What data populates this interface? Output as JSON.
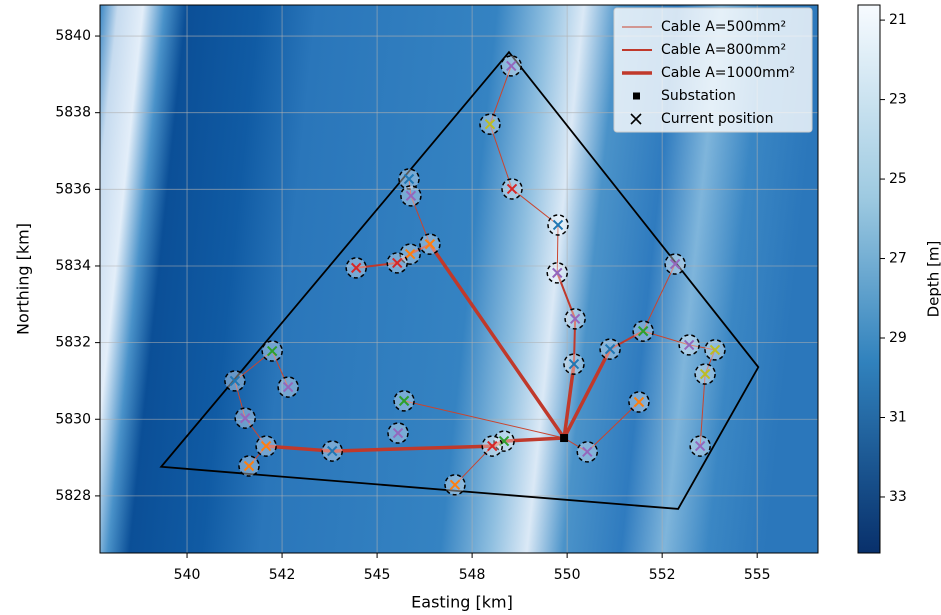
{
  "chart_data": {
    "type": "scatter",
    "xlabel": "Easting [km]",
    "ylabel": "Northing [km]",
    "xlim": [
      537.71,
      556.6
    ],
    "ylim": [
      5826.51,
      5840.81
    ],
    "xticks": [
      540,
      {
        "value": 542.5,
        "label": "542"
      },
      545,
      {
        "value": 547.5,
        "label": "548"
      },
      550,
      {
        "value": 552.5,
        "label": "552"
      },
      555
    ],
    "yticks": [
      5828,
      5830,
      5832,
      5834,
      5836,
      5838,
      5840
    ],
    "grid": true,
    "legend": "upper right",
    "boundary": {
      "color": "#000000",
      "x": [
        548.47,
        555.03,
        552.92,
        539.32
      ],
      "y": [
        5839.58,
        5831.36,
        5827.66,
        5828.76
      ]
    },
    "series": [
      {
        "name": "Cable A=500mm²",
        "color": "#c9452f",
        "width": 1,
        "x": [
          548.53,
          547.97,
          548.55,
          549.76,
          549.74,
          null,
          545.84,
          545.89,
          546.39,
          null,
          552.84,
          552.0,
          null,
          552.0,
          553.21,
          553.89,
          553.63,
          553.5,
          null,
          551.89,
          550.53,
          549.92,
          null,
          545.71,
          549.92,
          null,
          547.05,
          548.03,
          null,
          542.66,
          542.24,
          541.26,
          541.53,
          542.08,
          null,
          541.63,
          542.08
        ],
        "y": [
          5839.22,
          5837.7,
          5836.01,
          5835.07,
          5833.82,
          null,
          5836.27,
          5835.83,
          5834.57,
          null,
          5834.05,
          5832.3,
          null,
          5832.3,
          5831.94,
          5831.81,
          5831.18,
          5829.3,
          null,
          5830.45,
          5829.15,
          5829.51,
          null,
          5830.48,
          5829.51,
          null,
          5828.29,
          5829.3,
          null,
          5830.84,
          5831.78,
          5831.0,
          5830.03,
          5829.3,
          null,
          5828.78,
          5829.3
        ]
      },
      {
        "name": "Cable A=800mm²",
        "color": "#c0392b",
        "width": 2,
        "x": [
          546.39,
          545.87,
          545.53,
          544.45,
          null,
          549.74,
          550.21,
          550.18,
          null,
          551.13,
          552.0
        ],
        "y": [
          5834.57,
          5834.31,
          5834.08,
          5833.95,
          null,
          5833.82,
          5832.62,
          5831.44,
          null,
          5831.83,
          5832.3
        ]
      },
      {
        "name": "Cable A=1000mm²",
        "color": "#c0392b",
        "width": 3.5,
        "x": [
          549.92,
          546.39,
          null,
          549.92,
          550.18,
          null,
          549.92,
          551.13,
          null,
          549.92,
          548.34,
          548.03,
          543.82,
          542.08
        ],
        "y": [
          5829.51,
          5834.57,
          null,
          5829.51,
          5831.44,
          null,
          5829.51,
          5831.83,
          null,
          5829.51,
          5829.43,
          5829.3,
          5829.17,
          5829.3
        ]
      }
    ],
    "substation": {
      "name": "Substation",
      "color": "#000000",
      "x": 549.92,
      "y": 5829.51
    },
    "turbines": {
      "name": "Current position",
      "x": [
        548.53,
        547.97,
        548.55,
        545.84,
        545.89,
        549.76,
        546.39,
        545.87,
        545.53,
        544.45,
        552.84,
        549.74,
        550.21,
        552.0,
        553.21,
        553.89,
        551.13,
        542.24,
        541.26,
        542.66,
        553.63,
        550.18,
        545.71,
        551.89,
        541.53,
        545.55,
        542.08,
        543.82,
        548.34,
        548.03,
        550.53,
        553.5,
        541.63,
        547.05
      ],
      "y": [
        5839.22,
        5837.7,
        5836.01,
        5836.27,
        5835.83,
        5835.07,
        5834.57,
        5834.31,
        5834.08,
        5833.95,
        5834.05,
        5833.82,
        5832.62,
        5832.3,
        5831.94,
        5831.81,
        5831.83,
        5831.78,
        5831.0,
        5830.84,
        5831.18,
        5831.44,
        5830.48,
        5830.45,
        5830.03,
        5829.64,
        5829.3,
        5829.17,
        5829.43,
        5829.3,
        5829.15,
        5829.3,
        5828.78,
        5828.29
      ],
      "colors": [
        "#9467bd",
        "#bcbd22",
        "#d62728",
        "#1f77b4",
        "#9467bd",
        "#1f77b4",
        "#ff7f0e",
        "#ff7f0e",
        "#d62728",
        "#d62728",
        "#9467bd",
        "#9467bd",
        "#9467bd",
        "#2ca02c",
        "#9467bd",
        "#bcbd22",
        "#1f77b4",
        "#2ca02c",
        "#1f77b4",
        "#9467bd",
        "#bcbd22",
        "#1f77b4",
        "#2ca02c",
        "#ff7f0e",
        "#9467bd",
        "#9467bd",
        "#ff7f0e",
        "#1f77b4",
        "#2ca02c",
        "#d62728",
        "#9467bd",
        "#9467bd",
        "#ff7f0e",
        "#ff7f0e"
      ]
    },
    "colorbar": {
      "label": "Depth [m]",
      "lim": [
        20.62,
        34.41
      ],
      "ticks": [
        21,
        23,
        25,
        27,
        29,
        31,
        33
      ],
      "colors": [
        "#f7fbff",
        "#08306b"
      ]
    }
  }
}
